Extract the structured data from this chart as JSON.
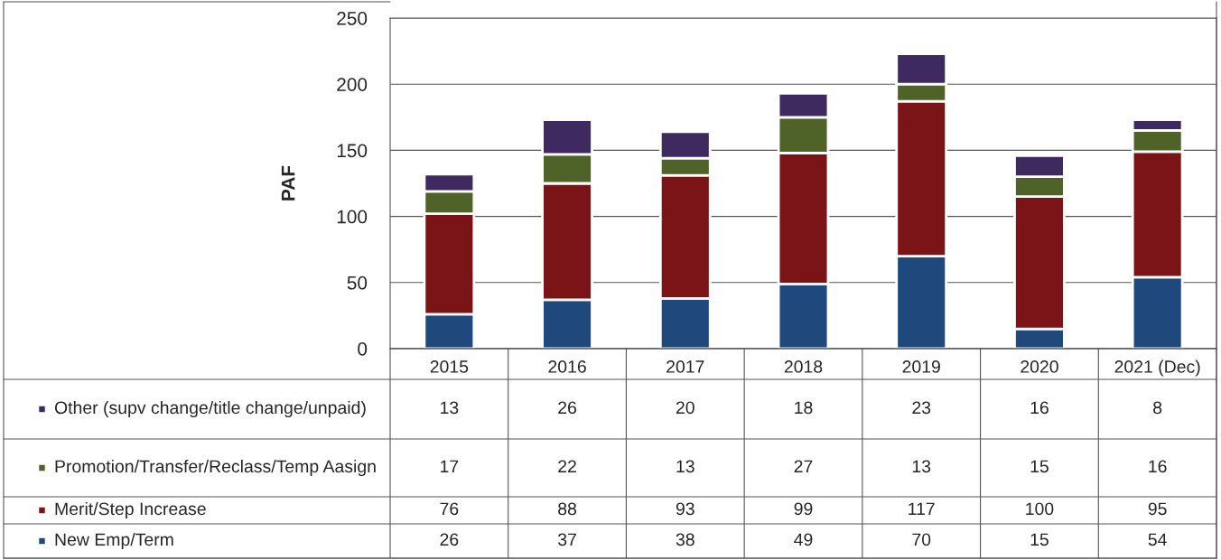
{
  "chart_data": {
    "type": "bar",
    "stacked": true,
    "ylabel": "PAF",
    "categories": [
      "2015",
      "2016",
      "2017",
      "2018",
      "2019",
      "2020",
      "2021 (Dec)"
    ],
    "series": [
      {
        "name": "New Emp/Term",
        "color": "#1f497d",
        "values": [
          26,
          37,
          38,
          49,
          70,
          15,
          54
        ]
      },
      {
        "name": "Merit/Step Increase",
        "color": "#7b1416",
        "values": [
          76,
          88,
          93,
          99,
          117,
          100,
          95
        ]
      },
      {
        "name": "Promotion/Transfer/Reclass/Temp Aasign",
        "color": "#4f6228",
        "values": [
          17,
          22,
          13,
          27,
          13,
          15,
          16
        ]
      },
      {
        "name": "Other (supv change/title change/unpaid)",
        "color": "#3f2a5f",
        "values": [
          13,
          26,
          20,
          18,
          23,
          16,
          8
        ]
      }
    ],
    "ylim": [
      0,
      250
    ],
    "yticks": [
      0,
      50,
      100,
      150,
      200,
      250
    ],
    "grid": "y",
    "data_labels": true,
    "legend": "bottom"
  }
}
